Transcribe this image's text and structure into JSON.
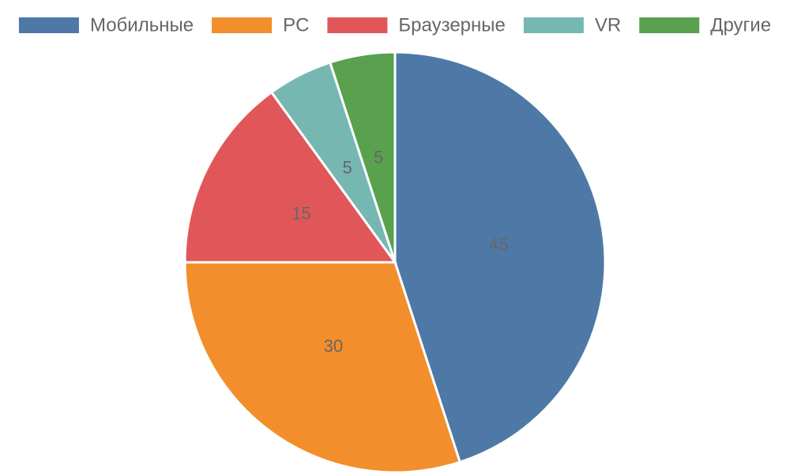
{
  "chart_data": {
    "type": "pie",
    "categories": [
      "Мобильные",
      "PC",
      "Браузерные",
      "VR",
      "Другие"
    ],
    "values": [
      45,
      30,
      15,
      5,
      5
    ],
    "colors": [
      "#4e79a7",
      "#f28e2b",
      "#e15759",
      "#76b7b2",
      "#59a14f"
    ],
    "legend": "top"
  }
}
